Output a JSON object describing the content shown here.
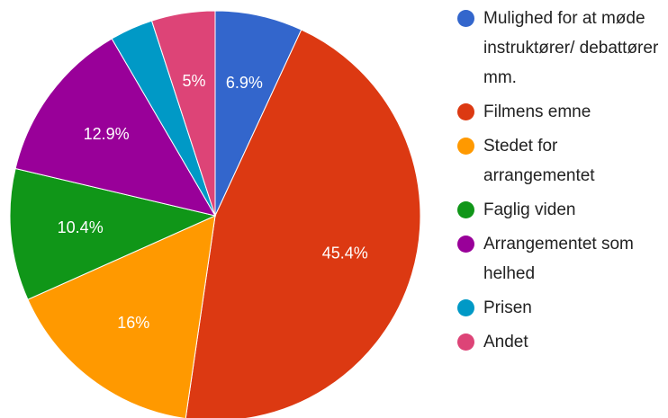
{
  "chart_data": {
    "type": "pie",
    "categories": [
      "Mulighed for at møde instruktører/ debattører mm.",
      "Filmens emne",
      "Stedet for arrangementet",
      "Faglig viden",
      "Arrangementet som helhed",
      "Prisen",
      "Andet"
    ],
    "values": [
      6.9,
      45.4,
      16,
      10.4,
      12.9,
      3.4,
      5
    ],
    "value_labels": [
      "6.9%",
      "45.4%",
      "16%",
      "10.4%",
      "12.9%",
      null,
      "5%"
    ],
    "colors": [
      "#3366cc",
      "#dc3912",
      "#ff9900",
      "#109618",
      "#990099",
      "#0099c6",
      "#dd4477"
    ],
    "legend": "right"
  }
}
